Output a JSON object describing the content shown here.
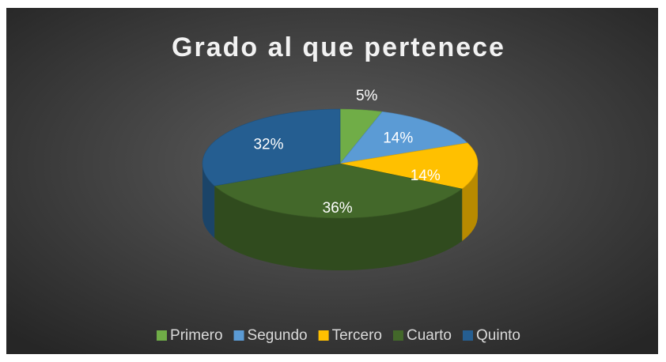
{
  "chart_data": {
    "type": "pie",
    "title": "Grado al que pertenece",
    "categories": [
      "Primero",
      "Segundo",
      "Tercero",
      "Cuarto",
      "Quinto"
    ],
    "values": [
      5,
      14,
      14,
      36,
      32
    ],
    "value_labels": [
      "5%",
      "14%",
      "14%",
      "36%",
      "32%"
    ],
    "colors": [
      "#70ad47",
      "#5b9bd5",
      "#ffc000",
      "#43682a",
      "#255e91"
    ],
    "legend": "bottom"
  }
}
